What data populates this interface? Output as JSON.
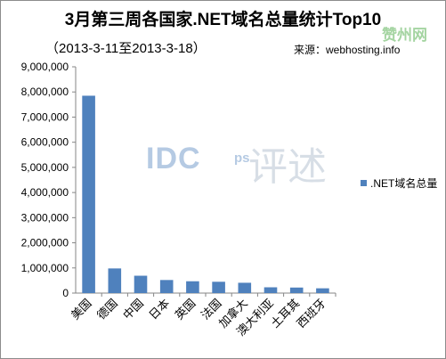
{
  "chart_data": {
    "type": "bar",
    "title": "3月第三周各国家.NET域名总量统计Top10",
    "subtitle": "（2013-3-11至2013-3-18）",
    "source": "来源：webhosting.info",
    "categories": [
      "美国",
      "德国",
      "中国",
      "日本",
      "英国",
      "法国",
      "加拿大",
      "澳大利亚",
      "土耳其",
      "西班牙"
    ],
    "series": [
      {
        "name": ".NET域名总量",
        "values": [
          7850000,
          980000,
          690000,
          520000,
          470000,
          450000,
          410000,
          230000,
          220000,
          190000
        ],
        "color": "#4f81bd"
      }
    ],
    "y_ticks": [
      "0",
      "1,000,000",
      "2,000,000",
      "3,000,000",
      "4,000,000",
      "5,000,000",
      "6,000,000",
      "7,000,000",
      "8,000,000",
      "9,000,000"
    ],
    "ylim": [
      0,
      9000000
    ],
    "grid": false,
    "legend_position": "right"
  },
  "watermark": {
    "text": "IDC",
    "suffix": "ps",
    "cn": "评述"
  },
  "corner_logo": "赞州网"
}
